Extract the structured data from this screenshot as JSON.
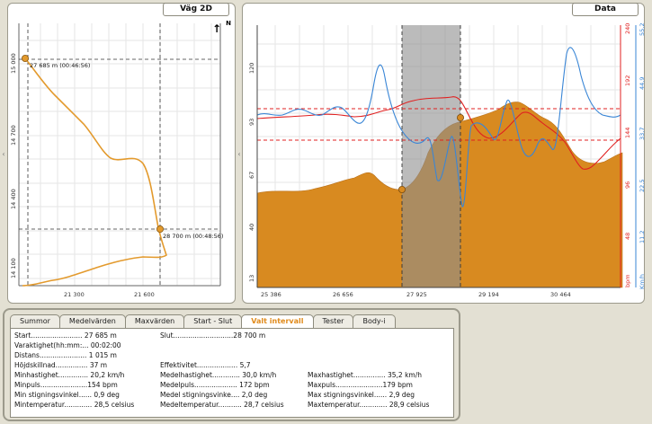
{
  "map_panel": {
    "title": "Väg 2D",
    "north_label": "N",
    "north_arrow": "↑",
    "y_ticks": [
      "15 000",
      "14 700",
      "14 400",
      "14 100"
    ],
    "x_ticks": [
      "21 300",
      "21 600"
    ],
    "marker_start_label": "27 685 m (00:46:56)",
    "marker_end_label": "28 700 m (00:48:56)",
    "route_color": "#e39a2d"
  },
  "data_panel": {
    "title": "Data",
    "left_ticks": [
      "120",
      "93",
      "67",
      "40",
      "13"
    ],
    "x_ticks": [
      "25 386",
      "26 656",
      "27 925",
      "29 194",
      "30 464"
    ],
    "red_ticks": [
      "240",
      "192",
      "144",
      "96",
      "48"
    ],
    "blue_ticks": [
      "55,2",
      "44,9",
      "33,7",
      "22,5",
      "11,2"
    ],
    "red_axis_label": "bpm",
    "blue_axis_label": "Km/h",
    "colors": {
      "elevation_fill": "#d88a20",
      "heart_rate": "#e02020",
      "speed": "#3a86d6",
      "selection": "#8e8e8e"
    }
  },
  "handles": {
    "left": "‹",
    "right": "‹"
  },
  "tabs": [
    "Summor",
    "Medelvärden",
    "Maxvärden",
    "Start - Slut",
    "Valt intervall",
    "Tester",
    "Body-i"
  ],
  "active_tab": "Valt intervall",
  "info": {
    "start": "Start........................ 27 685 m",
    "varaktighet": "Varaktighet(hh:mm:... 00:02:00",
    "distans": "Distans...................... 1 015 m",
    "hojdskillnad": "Höjdskillnad............... 37 m",
    "minhastighet": "Minhastighet.............. 20,2 km/h",
    "minpuls": "Minpuls......................154 bpm",
    "min_stigning": "Min stigningsvinkel...... 0,9 deg",
    "mintemperatur": "Mintemperatur............. 28,5 celsius",
    "slut": "Slut............................28 700 m",
    "effektivitet": "Effektivitet................... 5,7",
    "medelhastighet": "Medelhastighet............. 30,0 km/h",
    "medelpuls": "Medelpuls.................... 172 bpm",
    "medel_stigning": "Medel stigningsvinke.... 2,0 deg",
    "medeltemperatur": "Medeltemperatur........... 28,7 celsius",
    "maxhastighet": "Maxhastighet............... 35,2 km/h",
    "maxpuls": "Maxpuls......................179 bpm",
    "max_stigning": "Max stigningsvinkel...... 2,9 deg",
    "maxtemperatur": "Maxtemperatur............. 28,9 celsius"
  }
}
